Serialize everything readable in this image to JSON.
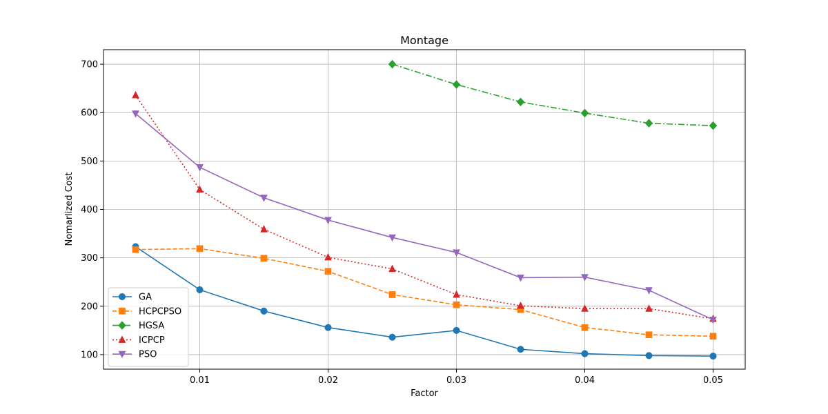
{
  "chart_data": {
    "type": "line",
    "title": "Montage",
    "xlabel": "Factor",
    "ylabel": "Nomarlized Cost",
    "xlim": [
      0.0025,
      0.0525
    ],
    "ylim": [
      70,
      730
    ],
    "xticks": [
      0.01,
      0.02,
      0.03,
      0.04,
      0.05
    ],
    "xtick_labels": [
      "0.01",
      "0.02",
      "0.03",
      "0.04",
      "0.05"
    ],
    "yticks": [
      100,
      200,
      300,
      400,
      500,
      600,
      700
    ],
    "ytick_labels": [
      "100",
      "200",
      "300",
      "400",
      "500",
      "600",
      "700"
    ],
    "grid": true,
    "legend_position": "lower-left",
    "series": [
      {
        "name": "GA",
        "color": "#1f77b4",
        "marker": "circle",
        "linestyle": "solid",
        "x": [
          0.005,
          0.01,
          0.015,
          0.02,
          0.025,
          0.03,
          0.035,
          0.04,
          0.045,
          0.05
        ],
        "values": [
          323,
          234,
          190,
          156,
          136,
          150,
          111,
          102,
          98,
          97
        ]
      },
      {
        "name": "HCPCPSO",
        "color": "#ff7f0e",
        "marker": "square",
        "linestyle": "dashed",
        "x": [
          0.005,
          0.01,
          0.015,
          0.02,
          0.025,
          0.03,
          0.035,
          0.04,
          0.045,
          0.05
        ],
        "values": [
          317,
          319,
          299,
          272,
          224,
          203,
          193,
          156,
          141,
          138
        ]
      },
      {
        "name": "HGSA",
        "color": "#2ca02c",
        "marker": "diamond",
        "linestyle": "dashdot",
        "x": [
          0.025,
          0.03,
          0.035,
          0.04,
          0.045,
          0.05
        ],
        "values": [
          700,
          658,
          622,
          599,
          578,
          573
        ]
      },
      {
        "name": "ICPCP",
        "color": "#d62728",
        "marker": "triangle-up",
        "linestyle": "dotted",
        "x": [
          0.005,
          0.01,
          0.015,
          0.02,
          0.025,
          0.03,
          0.035,
          0.04,
          0.045,
          0.05
        ],
        "values": [
          636,
          441,
          359,
          301,
          277,
          224,
          201,
          195,
          195,
          174
        ]
      },
      {
        "name": "PSO",
        "color": "#9467bd",
        "marker": "triangle-down",
        "linestyle": "solid",
        "x": [
          0.005,
          0.01,
          0.015,
          0.02,
          0.025,
          0.03,
          0.035,
          0.04,
          0.045,
          0.05
        ],
        "values": [
          598,
          487,
          424,
          378,
          342,
          311,
          259,
          260,
          233,
          172
        ]
      }
    ]
  }
}
